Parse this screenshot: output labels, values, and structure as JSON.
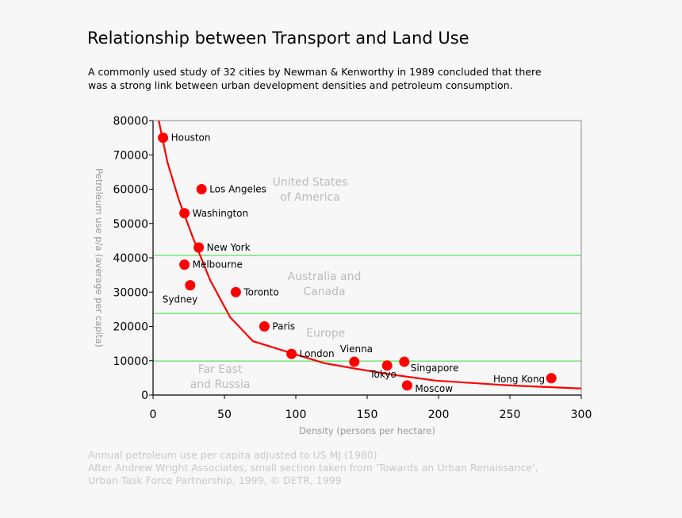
{
  "title": "Relationship between Transport and Land Use",
  "subtitle_lines": [
    "A commonly used study of 32 cities by Newman & Kenworthy in 1989 concluded that there",
    "was a strong link between urban development densities and petroleum consumption."
  ],
  "footer_lines": [
    "Annual petroleum use per capita adjusted to US MJ (1980)",
    "After Andrew Wright Associates, small section taken from 'Towards an Urban Renaissance',",
    "Urban Task Force Partnership, 1999, © DETR, 1999"
  ],
  "chart_data": {
    "type": "scatter",
    "xlabel": "Density (persons per hectare)",
    "ylabel": "Petroleum use p/a (average per capita)",
    "xlim": [
      0,
      300
    ],
    "ylim": [
      0,
      80000
    ],
    "xticks": [
      0,
      50,
      100,
      150,
      200,
      250,
      300
    ],
    "yticks": [
      0,
      10000,
      20000,
      30000,
      40000,
      50000,
      60000,
      70000,
      80000
    ],
    "grid": false,
    "point_color": "#ff0000",
    "points": [
      {
        "label": "Houston",
        "x": 7,
        "y": 75000
      },
      {
        "label": "Los Angeles",
        "x": 34,
        "y": 60000
      },
      {
        "label": "Washington",
        "x": 22,
        "y": 53000
      },
      {
        "label": "New York",
        "x": 32,
        "y": 43000
      },
      {
        "label": "Melbourne",
        "x": 22,
        "y": 38000
      },
      {
        "label": "Sydney",
        "x": 26,
        "y": 32000
      },
      {
        "label": "Toronto",
        "x": 58,
        "y": 30000
      },
      {
        "label": "Paris",
        "x": 78,
        "y": 20000
      },
      {
        "label": "London",
        "x": 97,
        "y": 12000
      },
      {
        "label": "Vienna",
        "x": 141,
        "y": 9700
      },
      {
        "label": "Tokyo",
        "x": 164,
        "y": 8600
      },
      {
        "label": "Singapore",
        "x": 176,
        "y": 9700
      },
      {
        "label": "Moscow",
        "x": 178,
        "y": 2800
      },
      {
        "label": "Hong Kong",
        "x": 279,
        "y": 4900
      }
    ],
    "trend_curve": {
      "color": "#ff0000",
      "points": [
        [
          4,
          80000
        ],
        [
          10,
          68000
        ],
        [
          18,
          57000
        ],
        [
          28,
          45800
        ],
        [
          40,
          33500
        ],
        [
          54,
          22700
        ],
        [
          70,
          15700
        ],
        [
          97,
          12200
        ],
        [
          120,
          9300
        ],
        [
          143,
          7600
        ],
        [
          170,
          5800
        ],
        [
          198,
          4200
        ],
        [
          250,
          2800
        ],
        [
          300,
          1900
        ]
      ]
    },
    "bands": {
      "line_color": "#33dd33",
      "boundaries": [
        40700,
        23800,
        9900
      ],
      "labels": [
        {
          "lines": [
            "United States",
            "of America"
          ],
          "x": 110,
          "y": 61000
        },
        {
          "lines": [
            "Australia and",
            "Canada"
          ],
          "x": 120,
          "y": 33500
        },
        {
          "lines": [
            "Europe"
          ],
          "x": 121,
          "y": 17000
        },
        {
          "lines": [
            "Far East",
            "and Russia"
          ],
          "x": 47,
          "y": 6500
        }
      ]
    }
  }
}
